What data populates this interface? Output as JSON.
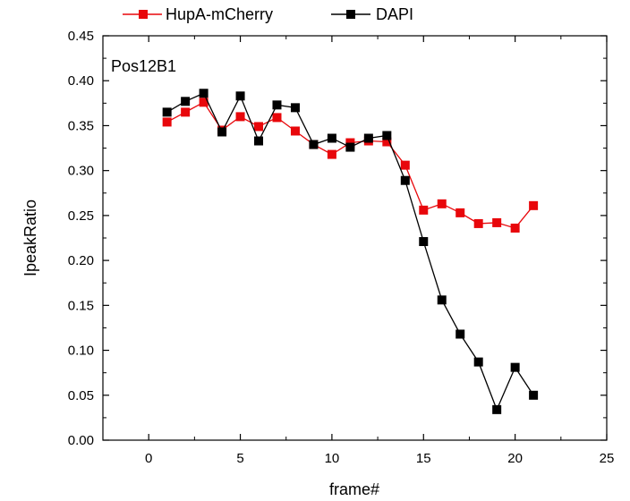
{
  "colors": {
    "series_1": "#e8070b",
    "series_2": "#000000",
    "axis": "#000000"
  },
  "chart_data": {
    "type": "line",
    "panel_label": "Pos12B1",
    "xlabel": "frame#",
    "ylabel": "IpeakRatio",
    "xlim": [
      -2.5,
      25
    ],
    "ylim": [
      0.0,
      0.45
    ],
    "x_ticks": [
      0,
      5,
      10,
      15,
      20,
      25
    ],
    "y_ticks": [
      0.0,
      0.05,
      0.1,
      0.15,
      0.2,
      0.25,
      0.3,
      0.35,
      0.4,
      0.45
    ],
    "x_tick_labels": [
      "0",
      "5",
      "10",
      "15",
      "20",
      "25"
    ],
    "y_tick_labels": [
      "0.00",
      "0.05",
      "0.10",
      "0.15",
      "0.20",
      "0.25",
      "0.30",
      "0.35",
      "0.40",
      "0.45"
    ],
    "grid": false,
    "legend_position": "top",
    "x": [
      1,
      2,
      3,
      4,
      5,
      6,
      7,
      8,
      9,
      10,
      11,
      12,
      13,
      14,
      15,
      16,
      17,
      18,
      19,
      20,
      21
    ],
    "series": [
      {
        "name": "HupA-mCherry",
        "color": "#e8070b",
        "marker": "square",
        "values": [
          0.354,
          0.365,
          0.376,
          0.345,
          0.36,
          0.349,
          0.359,
          0.344,
          0.329,
          0.318,
          0.331,
          0.333,
          0.332,
          0.306,
          0.256,
          0.263,
          0.253,
          0.241,
          0.242,
          0.236,
          0.261
        ]
      },
      {
        "name": "DAPI",
        "color": "#000000",
        "marker": "square",
        "values": [
          0.365,
          0.377,
          0.386,
          0.343,
          0.383,
          0.333,
          0.373,
          0.37,
          0.329,
          0.336,
          0.326,
          0.336,
          0.339,
          0.289,
          0.221,
          0.156,
          0.118,
          0.087,
          0.034,
          0.081,
          0.05
        ]
      }
    ]
  }
}
